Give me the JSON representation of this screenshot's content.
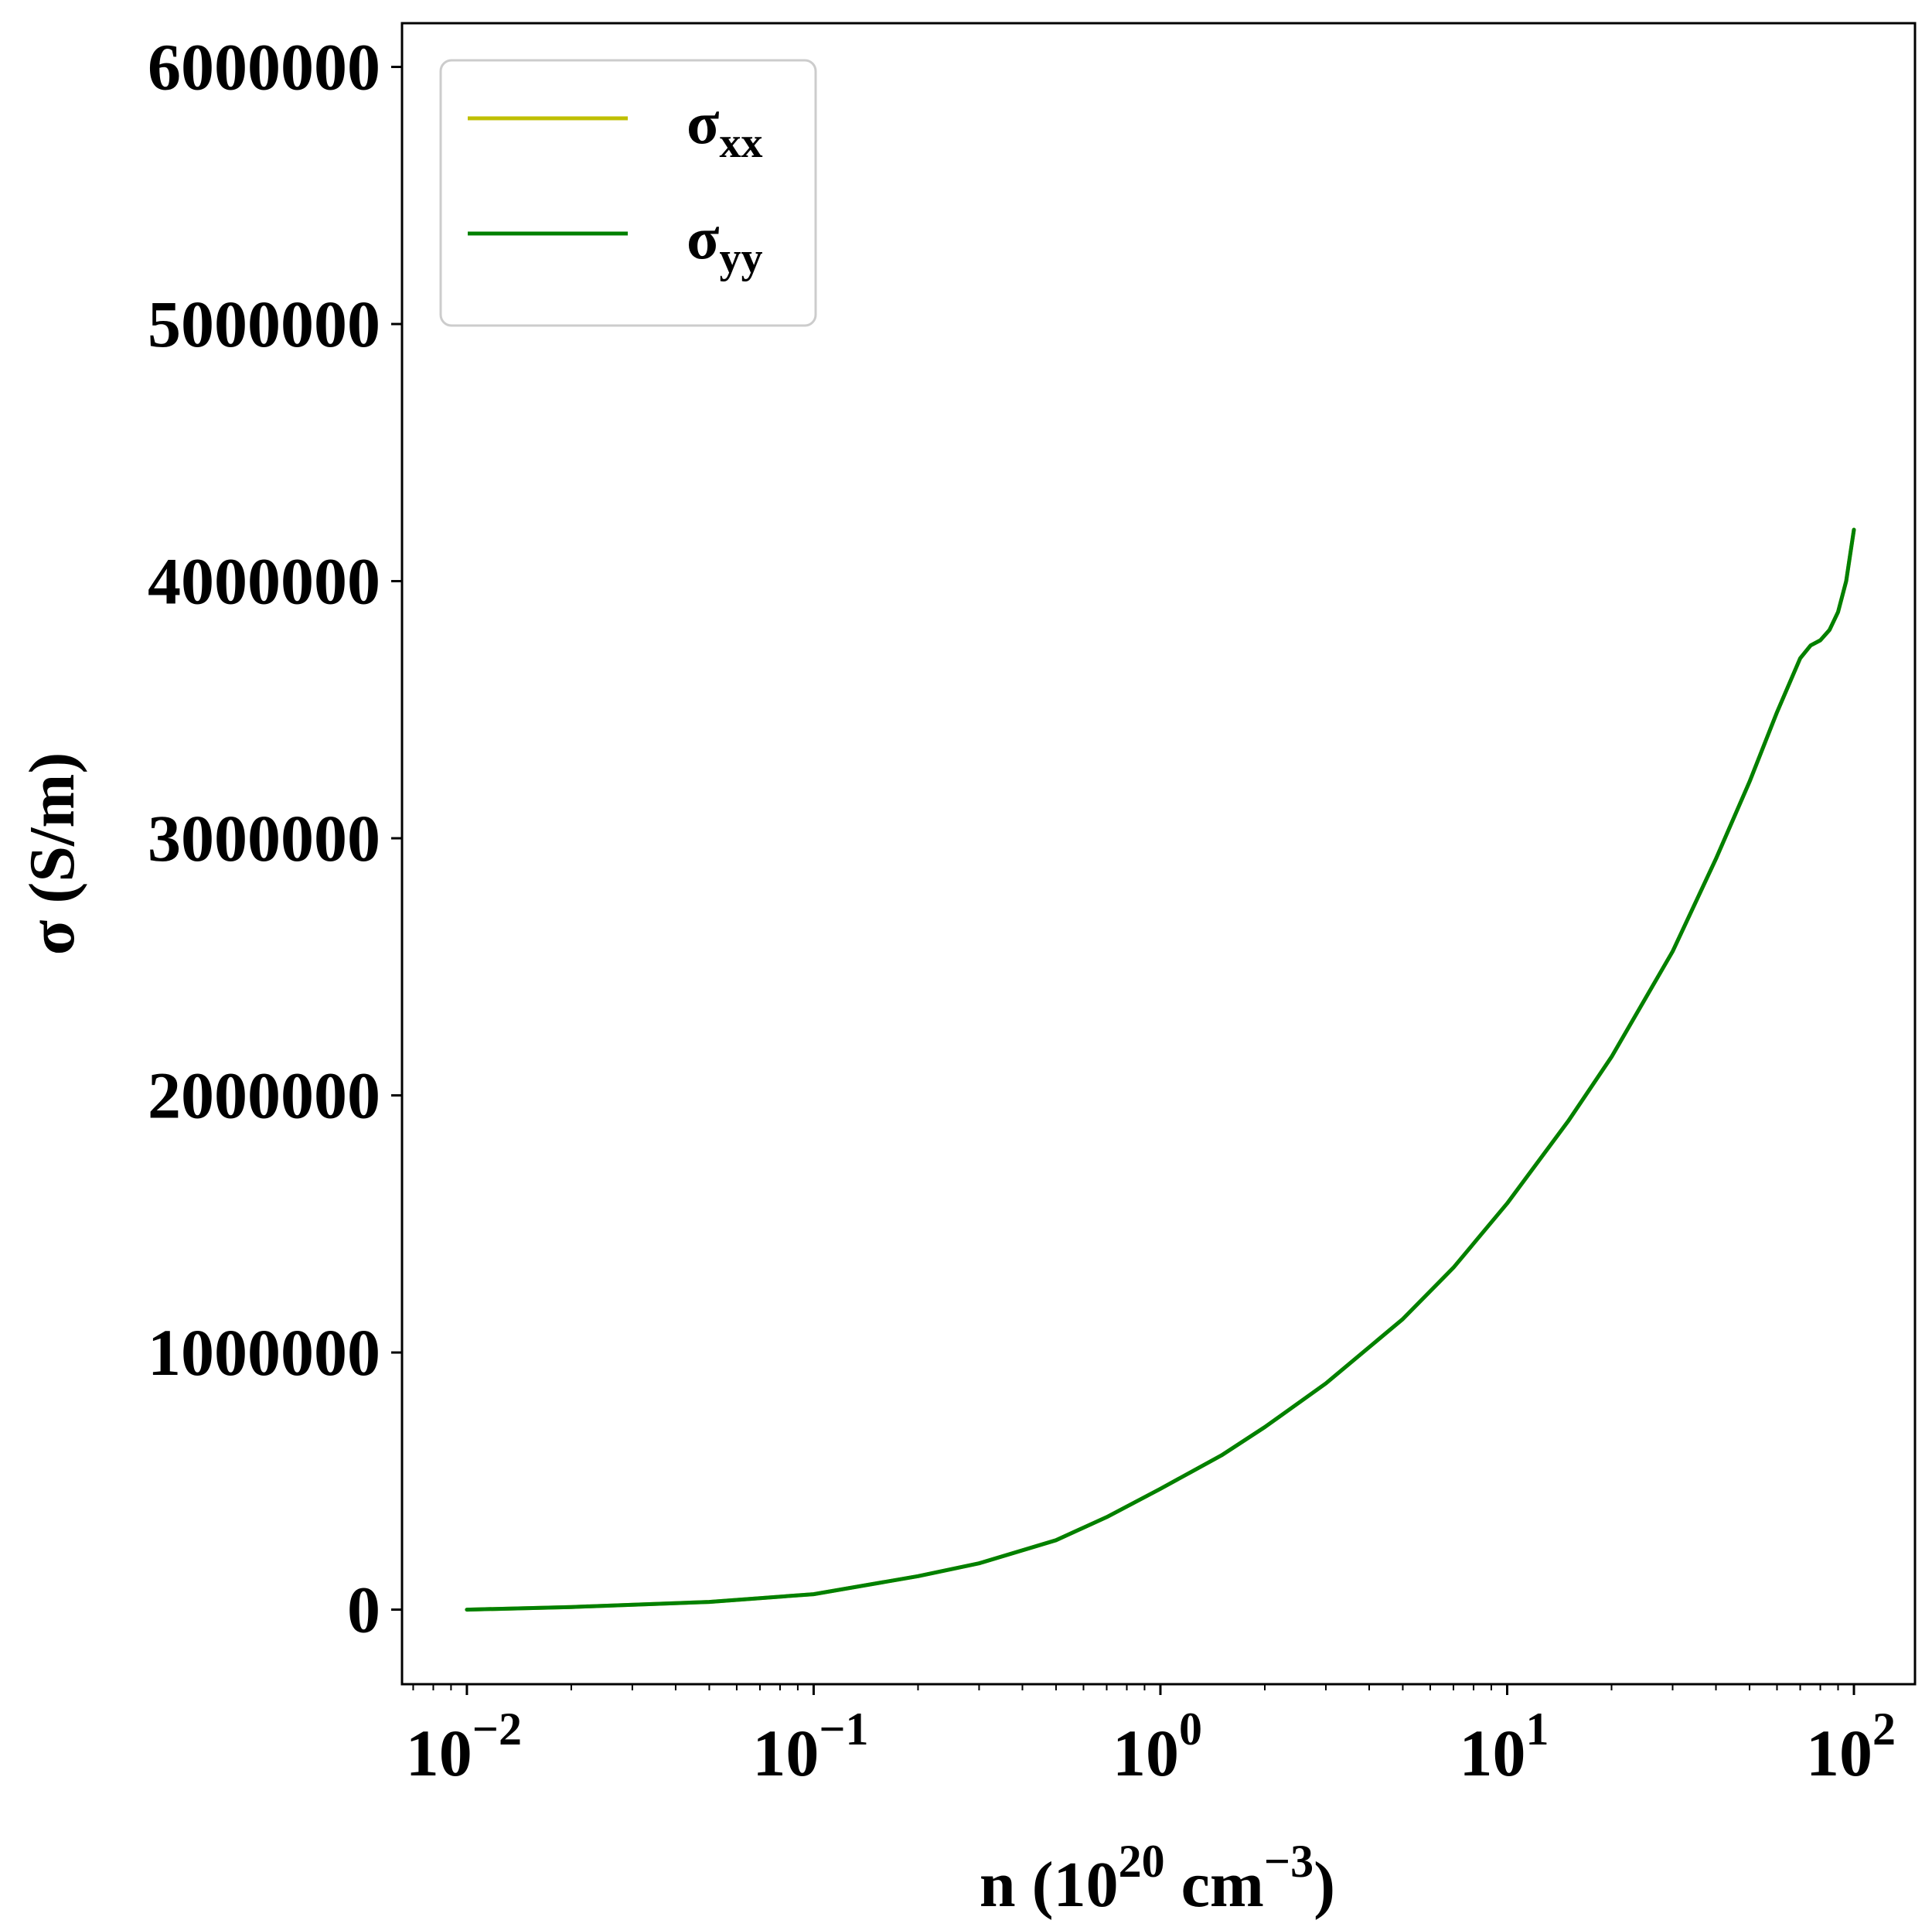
{
  "chart_data": {
    "type": "line",
    "title": "",
    "xlabel": {
      "prefix": "n (10",
      "exp1": "20",
      "middle": " cm",
      "exp2": "−3",
      "suffix": ")"
    },
    "ylabel": "σ (S/m)",
    "xscale": "log",
    "xlim": [
      0.0065,
      150
    ],
    "ylim": [
      -290000,
      6170000
    ],
    "x_ticks": [
      {
        "base": "10",
        "exp": "−2",
        "value": 0.01
      },
      {
        "base": "10",
        "exp": "−1",
        "value": 0.1
      },
      {
        "base": "10",
        "exp": "0",
        "value": 1
      },
      {
        "base": "10",
        "exp": "1",
        "value": 10
      },
      {
        "base": "10",
        "exp": "2",
        "value": 100
      }
    ],
    "y_ticks": [
      "0",
      "1000000",
      "2000000",
      "3000000",
      "4000000",
      "5000000",
      "6000000"
    ],
    "legend": {
      "placement": "upper-left",
      "entries": [
        {
          "base": "σ",
          "sub": "xx",
          "color": "#bfbf00"
        },
        {
          "base": "σ",
          "sub": "yy",
          "color": "#008000"
        }
      ]
    },
    "grid": false,
    "series": [
      {
        "name": "σxx",
        "color": "#bfbf00",
        "x": [
          0.01,
          0.02,
          0.05,
          0.1,
          0.2,
          0.3,
          0.5,
          0.7,
          1,
          1.5,
          2,
          3,
          5,
          7,
          10,
          15,
          20,
          30,
          40,
          50,
          60,
          70,
          75,
          80,
          85,
          90,
          95,
          100
        ],
        "y": [
          0,
          10000,
          30000,
          60000,
          130000,
          180000,
          270000,
          360000,
          470000,
          600000,
          710000,
          880000,
          1130000,
          1330000,
          1580000,
          1900000,
          2150000,
          2560000,
          2920000,
          3220000,
          3490000,
          3700000,
          3750000,
          3770000,
          3810000,
          3880000,
          4000000,
          4200000
        ]
      },
      {
        "name": "σyy",
        "color": "#008000",
        "x": [
          0.01,
          0.02,
          0.05,
          0.1,
          0.2,
          0.3,
          0.5,
          0.7,
          1,
          1.5,
          2,
          3,
          5,
          7,
          10,
          15,
          20,
          30,
          40,
          50,
          60,
          70,
          75,
          80,
          85,
          90,
          95,
          100
        ],
        "y": [
          0,
          10000,
          30000,
          60000,
          130000,
          180000,
          270000,
          360000,
          470000,
          600000,
          710000,
          880000,
          1130000,
          1330000,
          1580000,
          1900000,
          2150000,
          2560000,
          2920000,
          3220000,
          3490000,
          3700000,
          3750000,
          3770000,
          3810000,
          3880000,
          4000000,
          4200000
        ]
      }
    ]
  }
}
